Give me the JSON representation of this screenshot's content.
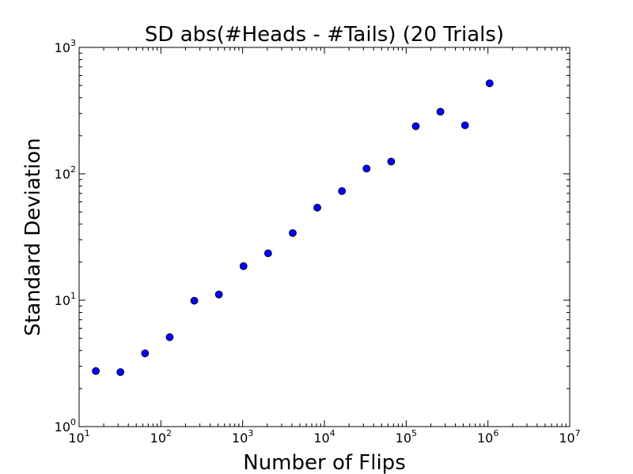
{
  "chart_data": {
    "type": "scatter",
    "title": "SD abs(#Heads - #Tails) (20 Trials)",
    "xlabel": "Number of Flips",
    "ylabel": "Standard Deviation",
    "xscale": "log",
    "yscale": "log",
    "xlim": [
      10,
      10000000
    ],
    "ylim": [
      1,
      1000
    ],
    "grid": false,
    "marker_color": "#0000ff",
    "x_ticks": [
      {
        "base": "10",
        "exp": "1"
      },
      {
        "base": "10",
        "exp": "2"
      },
      {
        "base": "10",
        "exp": "3"
      },
      {
        "base": "10",
        "exp": "4"
      },
      {
        "base": "10",
        "exp": "5"
      },
      {
        "base": "10",
        "exp": "6"
      },
      {
        "base": "10",
        "exp": "7"
      }
    ],
    "y_ticks": [
      {
        "base": "10",
        "exp": "0"
      },
      {
        "base": "10",
        "exp": "1"
      },
      {
        "base": "10",
        "exp": "2"
      },
      {
        "base": "10",
        "exp": "3"
      }
    ],
    "points": [
      {
        "x": 16,
        "y": 2.75
      },
      {
        "x": 32,
        "y": 2.7
      },
      {
        "x": 64,
        "y": 3.8
      },
      {
        "x": 128,
        "y": 5.1
      },
      {
        "x": 256,
        "y": 9.9
      },
      {
        "x": 512,
        "y": 11.1
      },
      {
        "x": 1024,
        "y": 18.6
      },
      {
        "x": 2048,
        "y": 23.5
      },
      {
        "x": 4096,
        "y": 34
      },
      {
        "x": 8192,
        "y": 54
      },
      {
        "x": 16384,
        "y": 73
      },
      {
        "x": 32768,
        "y": 110
      },
      {
        "x": 65536,
        "y": 125
      },
      {
        "x": 131072,
        "y": 238
      },
      {
        "x": 262144,
        "y": 310
      },
      {
        "x": 524288,
        "y": 242
      },
      {
        "x": 1048576,
        "y": 520
      }
    ]
  }
}
